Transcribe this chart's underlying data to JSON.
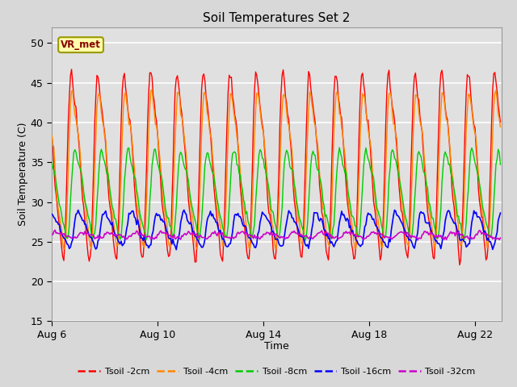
{
  "title": "Soil Temperatures Set 2",
  "xlabel": "Time",
  "ylabel": "Soil Temperature (C)",
  "ylim": [
    15,
    52
  ],
  "yticks": [
    15,
    20,
    25,
    30,
    35,
    40,
    45,
    50
  ],
  "background_color": "#d8d8d8",
  "plot_bg_color": "#e0e0e0",
  "grid_color": "white",
  "annotation_text": "VR_met",
  "annotation_box_color": "#ffffaa",
  "annotation_border_color": "#999900",
  "x_tick_days": [
    6,
    10,
    14,
    18,
    22
  ],
  "x_tick_labels": [
    "Aug 6",
    "Aug 10",
    "Aug 14",
    "Aug 18",
    "Aug 22"
  ],
  "series": [
    {
      "label": "Tsoil -2cm",
      "color": "#ff0000",
      "lw": 1.0
    },
    {
      "label": "Tsoil -4cm",
      "color": "#ff8800",
      "lw": 1.0
    },
    {
      "label": "Tsoil -8cm",
      "color": "#00cc00",
      "lw": 1.0
    },
    {
      "label": "Tsoil -16cm",
      "color": "#0000ff",
      "lw": 1.2
    },
    {
      "label": "Tsoil -32cm",
      "color": "#cc00cc",
      "lw": 1.2
    }
  ],
  "n_days": 17,
  "dt_hours": 1.0,
  "depth_params": [
    {
      "mean": 34.5,
      "amp": 15.0,
      "lag": 0.0,
      "noise": 0.3
    },
    {
      "mean": 34.0,
      "amp": 12.5,
      "lag": 1.0,
      "noise": 0.3
    },
    {
      "mean": 31.0,
      "amp": 7.0,
      "lag": 3.5,
      "noise": 0.25
    },
    {
      "mean": 26.5,
      "amp": 2.8,
      "lag": 6.0,
      "noise": 0.2
    },
    {
      "mean": 25.8,
      "amp": 0.5,
      "lag": 10.0,
      "noise": 0.12
    }
  ]
}
